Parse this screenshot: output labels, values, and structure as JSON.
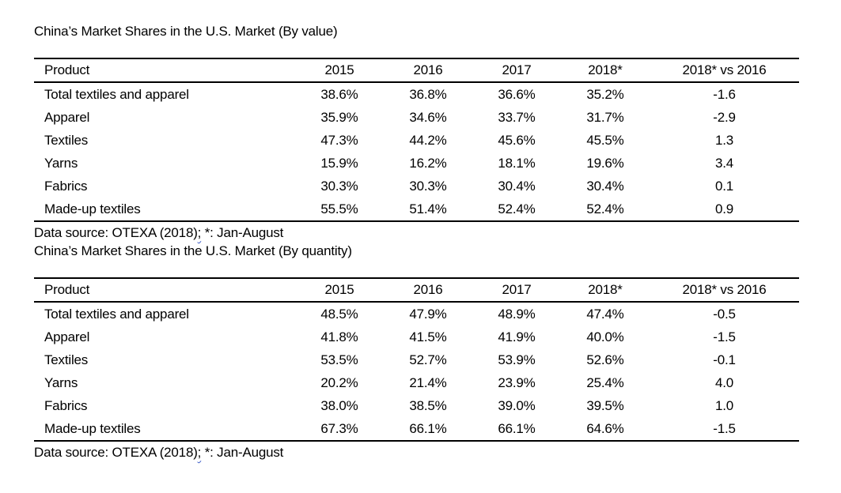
{
  "page": {
    "background": "#ffffff",
    "text_color": "#000000",
    "rule_color": "#000000",
    "squiggle_color": "#3a5bc7"
  },
  "tables": [
    {
      "title": "China’s Market Shares in the U.S. Market (By value)",
      "columns": [
        "Product",
        "2015",
        "2016",
        "2017",
        "2018*",
        "2018* vs 2016"
      ],
      "rows": [
        {
          "product": "Total textiles and apparel",
          "values": [
            "38.6%",
            "36.8%",
            "36.6%",
            "35.2%",
            "-1.6"
          ]
        },
        {
          "product": "Apparel",
          "values": [
            "35.9%",
            "34.6%",
            "33.7%",
            "31.7%",
            "-2.9"
          ]
        },
        {
          "product": "Textiles",
          "values": [
            "47.3%",
            "44.2%",
            "45.6%",
            "45.5%",
            "1.3"
          ]
        },
        {
          "product": "Yarns",
          "values": [
            "15.9%",
            "16.2%",
            "18.1%",
            "19.6%",
            "3.4"
          ]
        },
        {
          "product": "Fabrics",
          "values": [
            "30.3%",
            "30.3%",
            "30.4%",
            "30.4%",
            "0.1"
          ]
        },
        {
          "product": "Made-up textiles",
          "values": [
            "55.5%",
            "51.4%",
            "52.4%",
            "52.4%",
            "0.9"
          ]
        }
      ],
      "source": {
        "prefix": "Data source: OTEXA (2018)",
        "semicolon": ";",
        "suffix": " *: Jan-August"
      }
    },
    {
      "title": "China’s Market Shares in the U.S. Market (By quantity)",
      "columns": [
        "Product",
        "2015",
        "2016",
        "2017",
        "2018*",
        "2018* vs 2016"
      ],
      "rows": [
        {
          "product": "Total textiles and apparel",
          "values": [
            "48.5%",
            "47.9%",
            "48.9%",
            "47.4%",
            "-0.5"
          ]
        },
        {
          "product": "Apparel",
          "values": [
            "41.8%",
            "41.5%",
            "41.9%",
            "40.0%",
            "-1.5"
          ]
        },
        {
          "product": "Textiles",
          "values": [
            "53.5%",
            "52.7%",
            "53.9%",
            "52.6%",
            "-0.1"
          ]
        },
        {
          "product": "Yarns",
          "values": [
            "20.2%",
            "21.4%",
            "23.9%",
            "25.4%",
            "4.0"
          ]
        },
        {
          "product": "Fabrics",
          "values": [
            "38.0%",
            "38.5%",
            "39.0%",
            "39.5%",
            "1.0"
          ]
        },
        {
          "product": "Made-up textiles",
          "values": [
            "67.3%",
            "66.1%",
            "66.1%",
            "64.6%",
            "-1.5"
          ]
        }
      ],
      "source": {
        "prefix": "Data source: OTEXA (2018)",
        "semicolon": ";",
        "suffix": " *: Jan-August"
      }
    }
  ]
}
